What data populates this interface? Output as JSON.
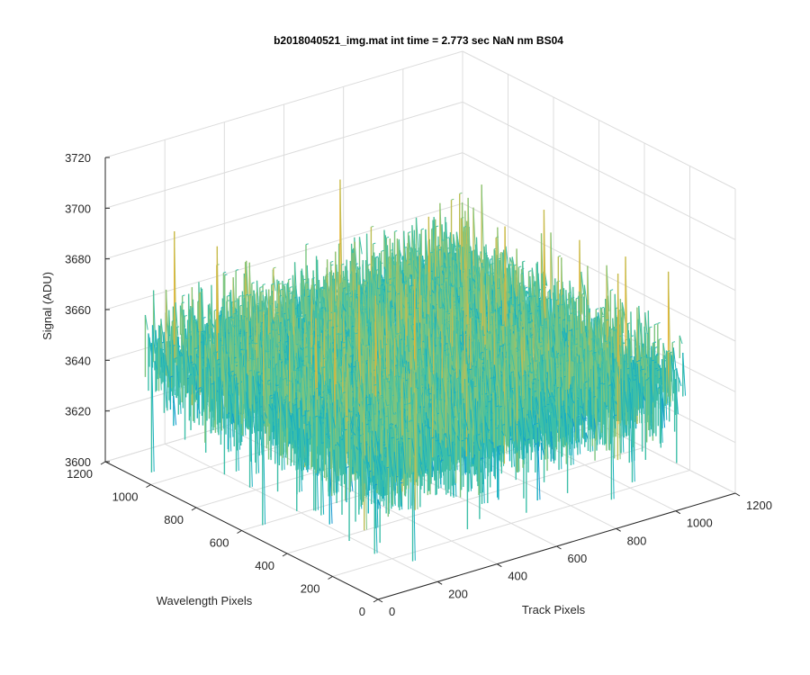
{
  "chart_data": {
    "type": "surface",
    "title": "b2018040521_img.mat int time = 2.773 sec  NaN nm BS04",
    "xlabel": "Track Pixels",
    "ylabel": "Wavelength Pixels",
    "zlabel": "Signal (ADU)",
    "xlim": [
      0,
      1200
    ],
    "ylim": [
      0,
      1200
    ],
    "zlim": [
      3600,
      3720
    ],
    "x_ticks": [
      "0",
      "200",
      "400",
      "600",
      "800",
      "1000",
      "1200"
    ],
    "y_ticks": [
      "0",
      "200",
      "400",
      "600",
      "800",
      "1000",
      "1200"
    ],
    "z_ticks": [
      "3600",
      "3620",
      "3640",
      "3660",
      "3680",
      "3700",
      "3720"
    ],
    "data_extent": {
      "x": [
        0,
        1024
      ],
      "y": [
        0,
        1024
      ]
    },
    "signal_mean": 3650,
    "signal_range": [
      3605,
      3710
    ],
    "grid": true,
    "colormap": [
      "#0072BD",
      "#1496D0",
      "#1AAFC0",
      "#3DBFA8",
      "#7CC57F",
      "#BDBE55",
      "#E6B432"
    ]
  }
}
